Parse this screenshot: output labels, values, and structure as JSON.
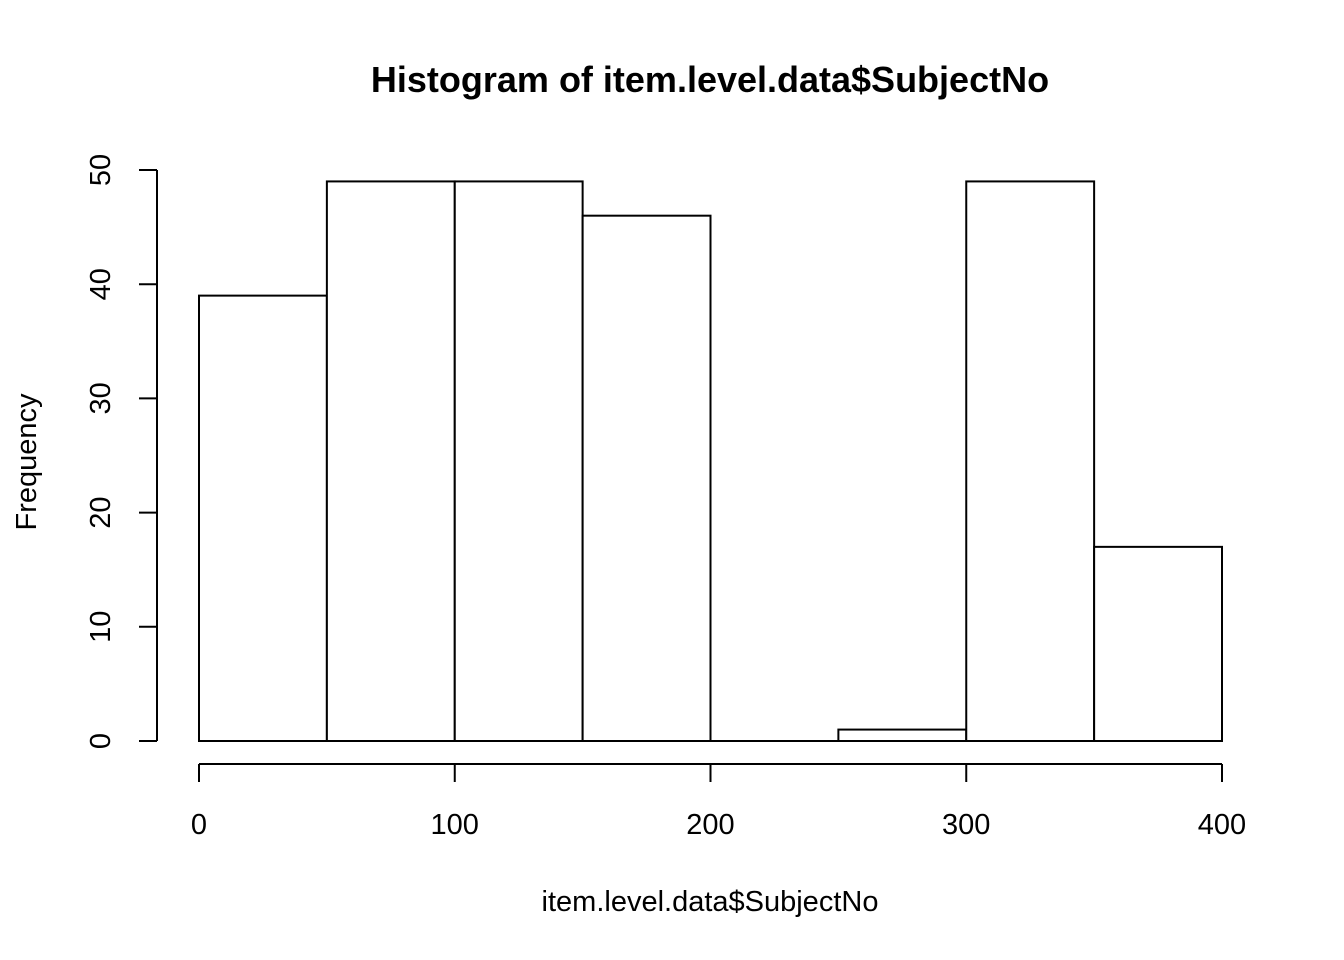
{
  "chart_data": {
    "type": "bar",
    "title": "Histogram of item.level.data$SubjectNo",
    "xlabel": "item.level.data$SubjectNo",
    "ylabel": "Frequency",
    "bins": [
      {
        "start": 0,
        "end": 50,
        "count": 39
      },
      {
        "start": 50,
        "end": 100,
        "count": 49
      },
      {
        "start": 100,
        "end": 150,
        "count": 49
      },
      {
        "start": 150,
        "end": 200,
        "count": 46
      },
      {
        "start": 200,
        "end": 250,
        "count": 0
      },
      {
        "start": 250,
        "end": 300,
        "count": 1
      },
      {
        "start": 300,
        "end": 350,
        "count": 49
      },
      {
        "start": 350,
        "end": 400,
        "count": 17
      }
    ],
    "xlim": [
      0,
      400
    ],
    "ylim": [
      0,
      50
    ],
    "x_ticks": [
      0,
      100,
      200,
      300,
      400
    ],
    "y_ticks": [
      0,
      10,
      20,
      30,
      40,
      50
    ],
    "grid": false,
    "colors": {
      "bar_fill": "#ffffff",
      "bar_stroke": "#000000"
    }
  }
}
